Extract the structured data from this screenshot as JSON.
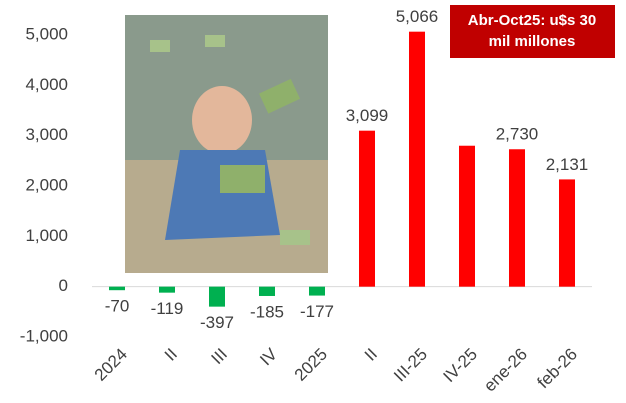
{
  "chart_data": {
    "type": "bar",
    "categories": [
      "2024",
      "II",
      "III",
      "IV",
      "2025",
      "II",
      "III-25",
      "IV-25",
      "ene-26",
      "feb-26"
    ],
    "values": [
      -70,
      -119,
      -397,
      -185,
      -177,
      3099,
      5066,
      2800,
      2730,
      2131
    ],
    "value_labels": [
      "-70",
      "-119",
      "-397",
      "-185",
      "-177",
      "3,099",
      "5,066",
      null,
      "2,730",
      "2,131"
    ],
    "colors": [
      "#00b050",
      "#00b050",
      "#00b050",
      "#00b050",
      "#00b050",
      "#ff0000",
      "#ff0000",
      "#ff0000",
      "#ff0000",
      "#ff0000"
    ],
    "ylim": [
      -1000,
      5000
    ],
    "yticks": [
      {
        "value": -1000,
        "label": "-1,000"
      },
      0,
      {
        "value": 1000,
        "label": "1,000"
      },
      {
        "value": 2000,
        "label": "2,000"
      },
      {
        "value": 3000,
        "label": "3,000"
      },
      {
        "value": 4000,
        "label": "4,000"
      },
      {
        "value": 5000,
        "label": "5,000"
      }
    ],
    "grid": false,
    "annotation": [
      "Abr-Oct25: u$s 30",
      "mil millones"
    ],
    "annotation_color": "#c00000"
  }
}
